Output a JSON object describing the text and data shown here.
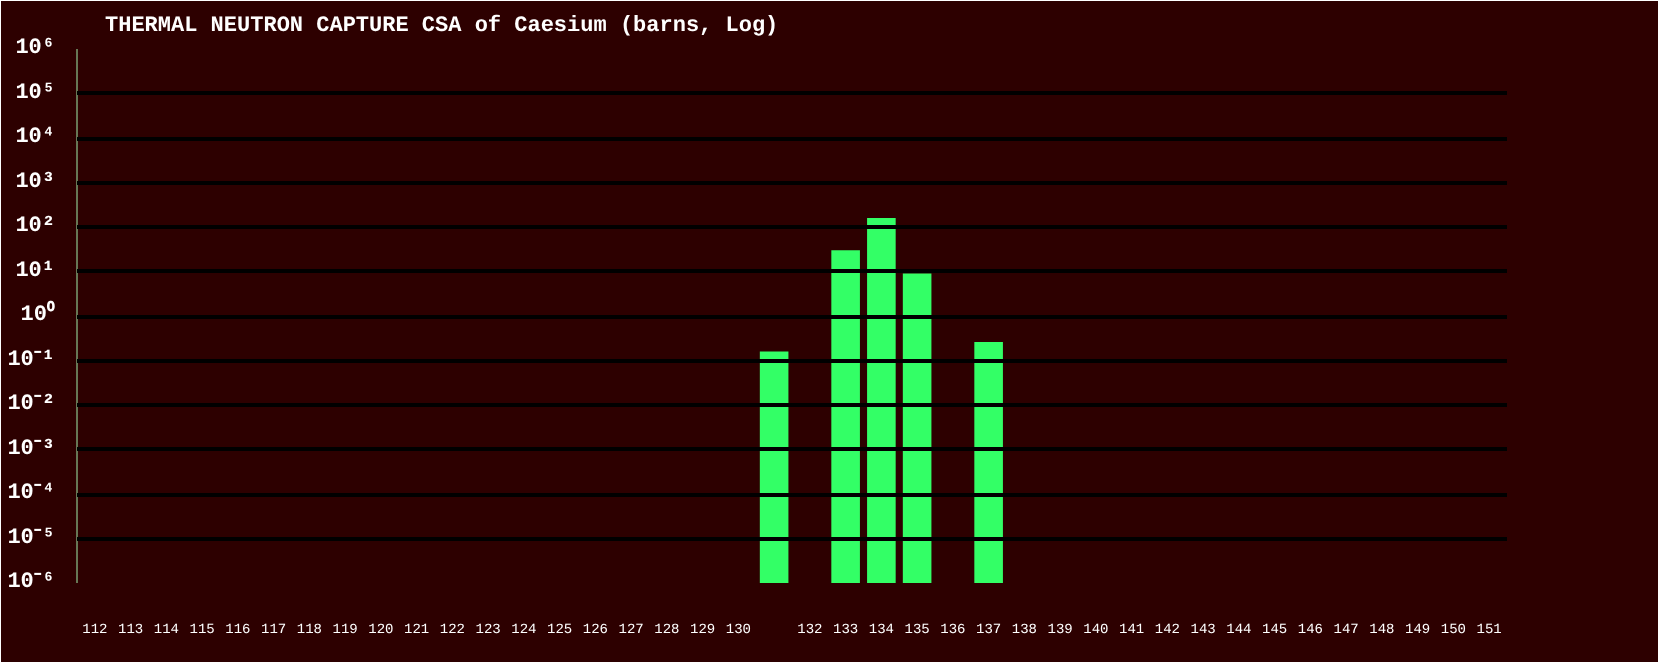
{
  "chart_data": {
    "type": "bar",
    "title": "THERMAL NEUTRON CAPTURE CSA of Caesium (barns, Log)",
    "categories": [
      "112",
      "113",
      "114",
      "115",
      "116",
      "117",
      "118",
      "119",
      "120",
      "121",
      "122",
      "123",
      "124",
      "125",
      "126",
      "127",
      "128",
      "129",
      "130",
      null,
      "132",
      "133",
      "134",
      "135",
      "136",
      "137",
      "138",
      "139",
      "140",
      "141",
      "142",
      "143",
      "144",
      "145",
      "146",
      "147",
      "148",
      "149",
      "150",
      "151"
    ],
    "values": [
      null,
      null,
      null,
      null,
      null,
      null,
      null,
      null,
      null,
      null,
      null,
      null,
      null,
      null,
      null,
      null,
      null,
      null,
      null,
      0.16,
      null,
      30,
      160,
      9,
      null,
      0.26,
      null,
      null,
      null,
      null,
      null,
      null,
      null,
      null,
      null,
      null,
      null,
      null,
      null,
      null
    ],
    "color": "#33ff66",
    "log": true,
    "ylim": [
      1e-06,
      1000000.0
    ],
    "yticks": [
      {
        "value": 1e-06,
        "label": "10⁻⁶"
      },
      {
        "value": 1e-05,
        "label": "10⁻⁵"
      },
      {
        "value": 0.0001,
        "label": "10⁻⁴"
      },
      {
        "value": 0.001,
        "label": "10⁻³"
      },
      {
        "value": 0.01,
        "label": "10⁻²"
      },
      {
        "value": 0.1,
        "label": "10⁻¹"
      },
      {
        "value": 1,
        "label": "10⁰"
      },
      {
        "value": 10,
        "label": "10¹"
      },
      {
        "value": 100,
        "label": "10²"
      },
      {
        "value": 1000,
        "label": "10³"
      },
      {
        "value": 10000,
        "label": "10⁴"
      },
      {
        "value": 100000,
        "label": "10⁵"
      },
      {
        "value": 1000000,
        "label": "10⁶"
      }
    ],
    "grid": "y"
  }
}
